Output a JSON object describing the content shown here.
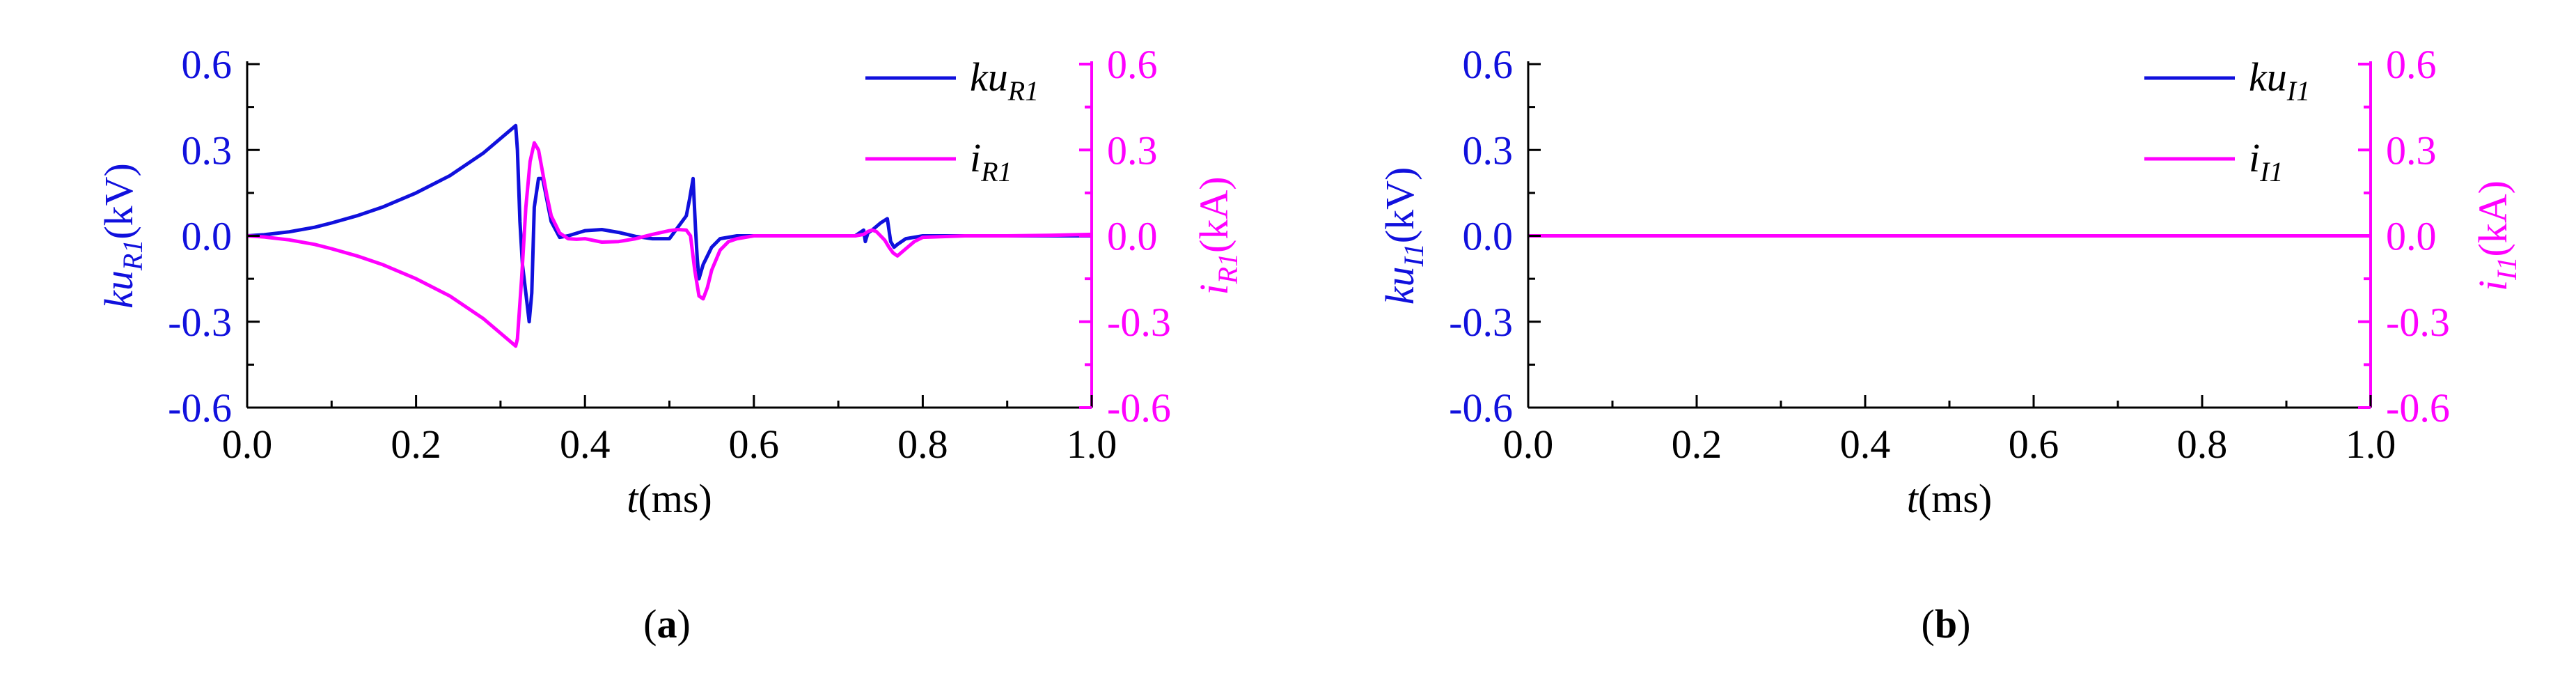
{
  "colors": {
    "voltage": "#1010dd",
    "current": "#ff00ff",
    "axis": "#000000"
  },
  "chart_data": [
    {
      "panel_id": "a",
      "type": "line",
      "panel_label": {
        "open": "(",
        "letter": "a",
        "close": ")"
      },
      "xlabel": {
        "var": "t",
        "unit": "(ms)"
      },
      "ylabel_left": {
        "main": "ku",
        "sub": "R1",
        "unit": "(kV)"
      },
      "ylabel_right": {
        "main": "i",
        "sub": "R1",
        "unit": "(kA)"
      },
      "xlim": [
        0,
        1.0
      ],
      "ylim_left": [
        -0.6,
        0.6
      ],
      "ylim_right": [
        -0.6,
        0.6
      ],
      "xticks": [
        "0.0",
        "0.2",
        "0.4",
        "0.6",
        "0.8",
        "1.0"
      ],
      "yticks_left": [
        "0.6",
        "0.3",
        "0.0",
        "-0.3",
        "-0.6"
      ],
      "yticks_right": [
        "0.6",
        "0.3",
        "0.0",
        "-0.3",
        "-0.6"
      ],
      "legend_position": "top-right",
      "series": [
        {
          "legend": {
            "main": "ku",
            "sub": "R1"
          },
          "axis": "left",
          "color_key": "voltage",
          "x": [
            0,
            0.02,
            0.05,
            0.08,
            0.1,
            0.13,
            0.16,
            0.2,
            0.24,
            0.28,
            0.318,
            0.32,
            0.323,
            0.326,
            0.33,
            0.334,
            0.337,
            0.34,
            0.345,
            0.35,
            0.36,
            0.37,
            0.38,
            0.4,
            0.42,
            0.44,
            0.46,
            0.48,
            0.5,
            0.52,
            0.524,
            0.528,
            0.531,
            0.533,
            0.535,
            0.54,
            0.55,
            0.56,
            0.58,
            0.6,
            0.65,
            0.7,
            0.72,
            0.73,
            0.732,
            0.735,
            0.74,
            0.75,
            0.758,
            0.762,
            0.766,
            0.77,
            0.78,
            0.8,
            0.85,
            0.9,
            0.95,
            1.0
          ],
          "values": [
            0,
            0.004,
            0.014,
            0.03,
            0.045,
            0.07,
            0.1,
            0.15,
            0.21,
            0.29,
            0.385,
            0.3,
            0.05,
            -0.1,
            -0.2,
            -0.3,
            -0.2,
            0.1,
            0.2,
            0.2,
            0.05,
            -0.005,
            0.0,
            0.018,
            0.022,
            0.012,
            -0.002,
            -0.01,
            -0.01,
            0.07,
            0.13,
            0.2,
            0.02,
            -0.08,
            -0.15,
            -0.1,
            -0.04,
            -0.01,
            0.0,
            0.0,
            0.0,
            0.0,
            0.0,
            0.02,
            -0.02,
            0.01,
            0.02,
            0.045,
            0.06,
            -0.02,
            -0.04,
            -0.03,
            -0.01,
            0.0,
            0.0,
            0.0,
            0.0,
            0.0
          ]
        },
        {
          "legend": {
            "main": "i",
            "sub": "R1"
          },
          "axis": "right",
          "color_key": "current",
          "x": [
            0,
            0.02,
            0.05,
            0.08,
            0.1,
            0.13,
            0.16,
            0.2,
            0.24,
            0.28,
            0.318,
            0.32,
            0.325,
            0.33,
            0.335,
            0.34,
            0.345,
            0.35,
            0.355,
            0.36,
            0.37,
            0.38,
            0.39,
            0.4,
            0.42,
            0.44,
            0.46,
            0.48,
            0.5,
            0.51,
            0.52,
            0.525,
            0.53,
            0.535,
            0.54,
            0.545,
            0.55,
            0.56,
            0.57,
            0.58,
            0.6,
            0.65,
            0.7,
            0.72,
            0.73,
            0.735,
            0.74,
            0.745,
            0.75,
            0.755,
            0.76,
            0.765,
            0.77,
            0.78,
            0.79,
            0.8,
            0.85,
            0.9,
            0.95,
            1.0
          ],
          "values": [
            0,
            -0.004,
            -0.014,
            -0.03,
            -0.045,
            -0.07,
            -0.1,
            -0.15,
            -0.21,
            -0.29,
            -0.385,
            -0.36,
            -0.15,
            0.1,
            0.26,
            0.325,
            0.3,
            0.22,
            0.14,
            0.07,
            0.01,
            -0.01,
            -0.012,
            -0.01,
            -0.022,
            -0.02,
            -0.01,
            0.005,
            0.018,
            0.022,
            0.02,
            0.0,
            -0.12,
            -0.21,
            -0.22,
            -0.18,
            -0.12,
            -0.05,
            -0.02,
            -0.01,
            0.0,
            0.0,
            0.0,
            0.0,
            0.005,
            0.015,
            0.02,
            0.015,
            0.0,
            -0.015,
            -0.04,
            -0.06,
            -0.07,
            -0.045,
            -0.02,
            -0.005,
            0.0,
            0.0,
            0.002,
            0.005
          ]
        }
      ]
    },
    {
      "panel_id": "b",
      "type": "line",
      "panel_label": {
        "open": "(",
        "letter": "b",
        "close": ")"
      },
      "xlabel": {
        "var": "t",
        "unit": "(ms)"
      },
      "ylabel_left": {
        "main": "ku",
        "sub": "I1",
        "unit": "(kV)"
      },
      "ylabel_right": {
        "main": "i",
        "sub": "I1",
        "unit": "(kA)"
      },
      "xlim": [
        0,
        1.0
      ],
      "ylim_left": [
        -0.6,
        0.6
      ],
      "ylim_right": [
        -0.6,
        0.6
      ],
      "xticks": [
        "0.0",
        "0.2",
        "0.4",
        "0.6",
        "0.8",
        "1.0"
      ],
      "yticks_left": [
        "0.6",
        "0.3",
        "0.0",
        "-0.3",
        "-0.6"
      ],
      "yticks_right": [
        "0.6",
        "0.3",
        "0.0",
        "-0.3",
        "-0.6"
      ],
      "legend_position": "top-right",
      "series": [
        {
          "legend": {
            "main": "ku",
            "sub": "I1"
          },
          "axis": "left",
          "color_key": "voltage",
          "x": [
            0,
            0.2,
            0.4,
            0.6,
            0.8,
            1.0
          ],
          "values": [
            0,
            0,
            0,
            0,
            0,
            0
          ]
        },
        {
          "legend": {
            "main": "i",
            "sub": "I1"
          },
          "axis": "right",
          "color_key": "current",
          "x": [
            0,
            0.2,
            0.4,
            0.6,
            0.8,
            1.0
          ],
          "values": [
            0,
            0,
            0,
            0,
            0,
            0
          ]
        }
      ]
    }
  ]
}
